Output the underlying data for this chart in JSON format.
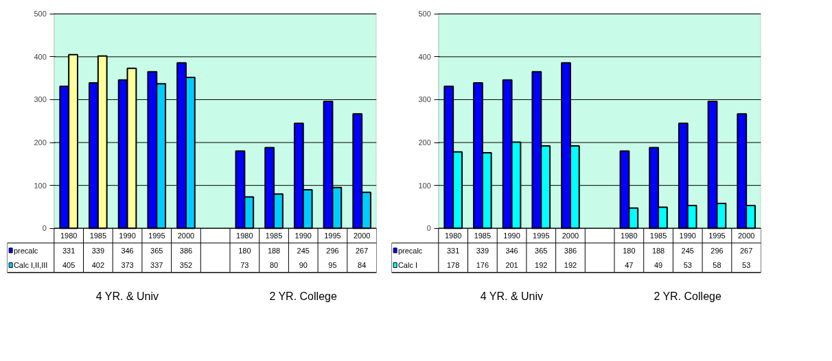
{
  "chart_data": [
    {
      "type": "bar",
      "categories": [
        "1980",
        "1985",
        "1990",
        "1995",
        "2000",
        null,
        "1980",
        "1985",
        "1990",
        "1995",
        "2000"
      ],
      "ylim": [
        0,
        500
      ],
      "yticks": [
        0,
        100,
        200,
        300,
        400,
        500
      ],
      "grid": "y",
      "data_labels": true,
      "legend": "bottom left",
      "series": [
        {
          "name": "precalc",
          "color": "#0000ff",
          "values": [
            331,
            339,
            346,
            365,
            386,
            null,
            180,
            188,
            245,
            296,
            267
          ]
        },
        {
          "name": "Calc I,II,III",
          "color": "#00ccff",
          "colors": [
            "#ffff99",
            "#ffff99",
            "#ffff99",
            "#00ccff",
            "#00ccff",
            null,
            "#00ccff",
            "#00ccff",
            "#00ccff",
            "#00ccff",
            "#00ccff"
          ],
          "values": [
            405,
            402,
            373,
            337,
            352,
            null,
            73,
            80,
            90,
            95,
            84
          ]
        }
      ],
      "annotations": [
        "4 YR. & Univ",
        "2 YR. College"
      ]
    },
    {
      "type": "bar",
      "categories": [
        "1980",
        "1985",
        "1990",
        "1995",
        "2000",
        null,
        "1980",
        "1985",
        "1990",
        "1995",
        "2000"
      ],
      "ylim": [
        0,
        500
      ],
      "yticks": [
        0,
        100,
        200,
        300,
        400,
        500
      ],
      "grid": "y",
      "data_labels": true,
      "legend": "bottom left",
      "series": [
        {
          "name": "precalc",
          "color": "#0000ff",
          "values": [
            331,
            339,
            346,
            365,
            386,
            null,
            180,
            188,
            245,
            296,
            267
          ]
        },
        {
          "name": "Calc I",
          "color": "#00ffff",
          "values": [
            178,
            176,
            201,
            192,
            192,
            null,
            47,
            49,
            53,
            58,
            53
          ]
        }
      ],
      "annotations": [
        "4 YR. & Univ",
        "2 YR. College"
      ]
    }
  ]
}
